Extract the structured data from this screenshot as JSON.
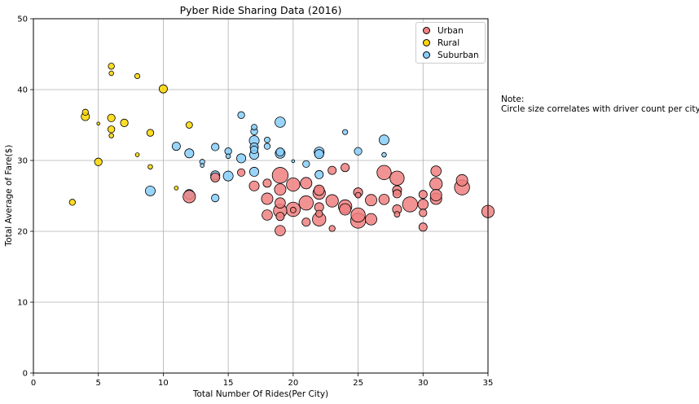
{
  "chart_data": {
    "type": "scatter",
    "title": "Pyber Ride Sharing Data (2016)",
    "xlabel": "Total Number Of Rides(Per City)",
    "ylabel": "Total Average of Fare($)",
    "xlim": [
      0,
      35
    ],
    "ylim": [
      0,
      50
    ],
    "x_ticks": [
      "0",
      "5",
      "10",
      "15",
      "20",
      "25",
      "30",
      "35"
    ],
    "y_ticks": [
      "0",
      "10",
      "20",
      "30",
      "40",
      "50"
    ],
    "grid": true,
    "legend_position": "top-right",
    "marker_size_meaning": "driver count",
    "series": [
      {
        "name": "Urban",
        "color": "#f08080",
        "points": [
          [
            19,
            27.9,
            50
          ],
          [
            33,
            26.2,
            45
          ],
          [
            29,
            23.8,
            45
          ],
          [
            25,
            21.5,
            45
          ],
          [
            27,
            28.3,
            40
          ],
          [
            20,
            23.1,
            40
          ],
          [
            25,
            22.3,
            40
          ],
          [
            28,
            27.5,
            40
          ],
          [
            21,
            24.0,
            40
          ],
          [
            22,
            21.7,
            35
          ],
          [
            20,
            26.6,
            35
          ],
          [
            24,
            23.5,
            35
          ],
          [
            19,
            22.9,
            35
          ],
          [
            35,
            22.8,
            30
          ],
          [
            12,
            24.9,
            30
          ],
          [
            31,
            26.7,
            30
          ],
          [
            22,
            25.4,
            30
          ],
          [
            23,
            24.3,
            30
          ],
          [
            26,
            24.4,
            25
          ],
          [
            31,
            24.6,
            25
          ],
          [
            24,
            23.1,
            25
          ],
          [
            19,
            25.9,
            25
          ],
          [
            21,
            26.8,
            25
          ],
          [
            18,
            24.6,
            25
          ],
          [
            26,
            21.7,
            25
          ],
          [
            33,
            27.2,
            25
          ],
          [
            31,
            25.1,
            25
          ],
          [
            30,
            23.8,
            20
          ],
          [
            27,
            24.5,
            20
          ],
          [
            31,
            28.5,
            20
          ],
          [
            19,
            20.1,
            20
          ],
          [
            18,
            22.3,
            20
          ],
          [
            19,
            24.0,
            20
          ],
          [
            22,
            25.8,
            20
          ],
          [
            17,
            26.4,
            18
          ],
          [
            22,
            23.4,
            15
          ],
          [
            28,
            23.1,
            15
          ],
          [
            28,
            25.8,
            15
          ],
          [
            25,
            25.5,
            15
          ],
          [
            14,
            27.6,
            15
          ],
          [
            24,
            29.0,
            12
          ],
          [
            23,
            28.6,
            12
          ],
          [
            18,
            26.8,
            12
          ],
          [
            19,
            22.1,
            12
          ],
          [
            28,
            25.3,
            12
          ],
          [
            30,
            25.2,
            12
          ],
          [
            30,
            20.6,
            12
          ],
          [
            21,
            21.3,
            12
          ],
          [
            16,
            28.3,
            10
          ],
          [
            30,
            22.6,
            10
          ],
          [
            22,
            22.5,
            8
          ],
          [
            23,
            20.4,
            6
          ],
          [
            28,
            22.4,
            5
          ],
          [
            25,
            25.1,
            5
          ],
          [
            20,
            23.0,
            5
          ]
        ]
      },
      {
        "name": "Rural",
        "color": "#ffd700",
        "points": [
          [
            10,
            40.1,
            12
          ],
          [
            4,
            36.2,
            12
          ],
          [
            6,
            36.0,
            10
          ],
          [
            7,
            35.3,
            10
          ],
          [
            5,
            29.8,
            10
          ],
          [
            6,
            34.4,
            8
          ],
          [
            9,
            33.9,
            8
          ],
          [
            12,
            35.0,
            7
          ],
          [
            4,
            36.8,
            6
          ],
          [
            6,
            43.3,
            6
          ],
          [
            3,
            24.1,
            6
          ],
          [
            8,
            41.9,
            4
          ],
          [
            6,
            33.5,
            3
          ],
          [
            6,
            42.3,
            3
          ],
          [
            9,
            29.1,
            3
          ],
          [
            8,
            30.8,
            2
          ],
          [
            11,
            26.1,
            2
          ],
          [
            5,
            35.2,
            1
          ]
        ]
      },
      {
        "name": "Suburban",
        "color": "#87cefa",
        "points": [
          [
            19,
            35.4,
            20
          ],
          [
            27,
            32.9,
            18
          ],
          [
            17,
            32.8,
            18
          ],
          [
            9,
            25.7,
            18
          ],
          [
            19,
            31.0,
            18
          ],
          [
            22,
            31.2,
            18
          ],
          [
            22,
            30.9,
            15
          ],
          [
            15,
            27.8,
            18
          ],
          [
            16,
            30.3,
            15
          ],
          [
            12,
            25.2,
            18
          ],
          [
            12,
            31.0,
            15
          ],
          [
            14,
            27.9,
            15
          ],
          [
            17,
            31.9,
            12
          ],
          [
            17,
            30.8,
            15
          ],
          [
            17,
            28.4,
            15
          ],
          [
            11,
            32.0,
            12
          ],
          [
            19,
            31.2,
            12
          ],
          [
            22,
            28.0,
            12
          ],
          [
            17,
            31.5,
            10
          ],
          [
            25,
            31.3,
            10
          ],
          [
            14,
            24.7,
            10
          ],
          [
            14,
            31.9,
            10
          ],
          [
            16,
            36.4,
            8
          ],
          [
            17,
            34.1,
            8
          ],
          [
            15,
            31.3,
            8
          ],
          [
            21,
            29.5,
            8
          ],
          [
            18,
            32.0,
            6
          ],
          [
            17,
            34.7,
            5
          ],
          [
            18,
            32.9,
            5
          ],
          [
            13,
            29.8,
            4
          ],
          [
            24,
            34.0,
            4
          ],
          [
            27,
            30.8,
            3
          ],
          [
            15,
            30.6,
            3
          ],
          [
            13,
            29.3,
            2
          ],
          [
            20,
            29.9,
            1
          ]
        ]
      }
    ]
  },
  "note": {
    "heading": "Note:",
    "text": "Circle size correlates with driver count per city."
  }
}
